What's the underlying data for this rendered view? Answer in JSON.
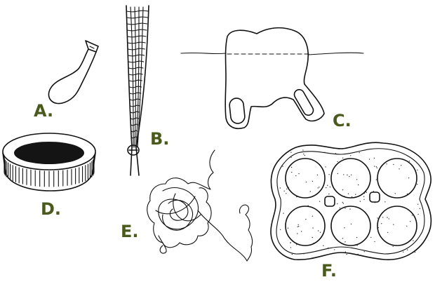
{
  "figure": {
    "labels": {
      "a": "A.",
      "b": "B.",
      "c": "C.",
      "d": "D.",
      "e": "E.",
      "f": "F."
    },
    "colors": {
      "label": "#4a5a1c",
      "ink": "#111111",
      "background": "#ffffff"
    },
    "items": [
      {
        "key": "a",
        "icon": "balloon-icon"
      },
      {
        "key": "b",
        "icon": "mesh-net-bag-icon"
      },
      {
        "key": "c",
        "icon": "six-pack-ring-in-water-icon"
      },
      {
        "key": "d",
        "icon": "plastic-lid-icon"
      },
      {
        "key": "e",
        "icon": "tangled-fishing-line-icon"
      },
      {
        "key": "f",
        "icon": "six-pack-rings-icon"
      }
    ]
  }
}
